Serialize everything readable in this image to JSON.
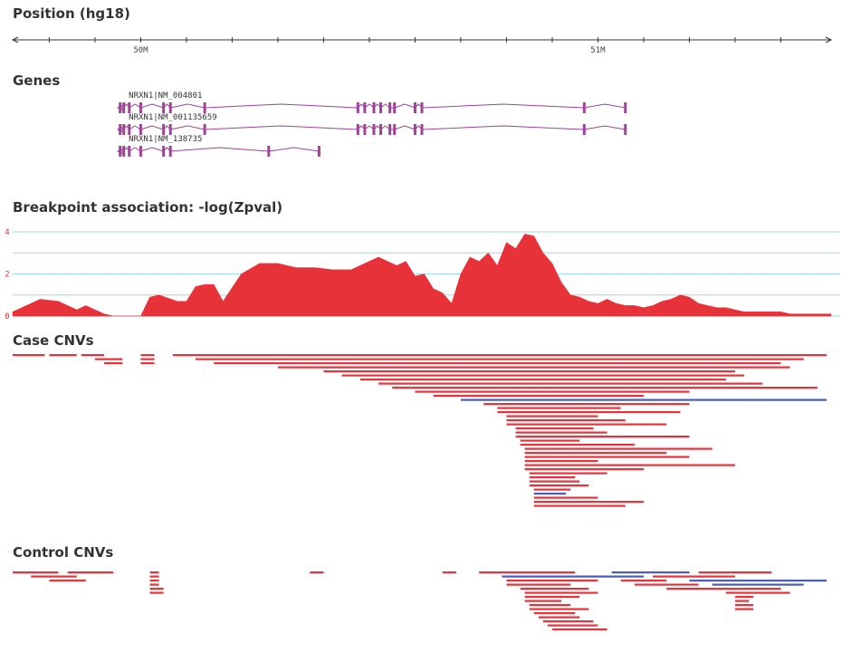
{
  "tracks": {
    "position_title": "Position (hg18)",
    "genes_title": "Genes",
    "breakpoint_title": "Breakpoint association: -log(Zpval)",
    "case_title": "Case CNVs",
    "control_title": "Control CNVs"
  },
  "colors": {
    "accent": "#e8323a",
    "cnv_blue": "#4a5bbd",
    "gene": "#a0429a",
    "grid": "#9fd8e6"
  },
  "chart_data": [
    {
      "type": "ruler",
      "title": "Position (hg18)",
      "tick_labels": [
        {
          "label": "50M",
          "x": 50.0
        },
        {
          "label": "51M",
          "x": 51.0
        }
      ],
      "xlim": [
        49.72,
        51.51
      ]
    },
    {
      "type": "gene-track",
      "title": "Genes",
      "genes": [
        {
          "name": "NRXN1|NM_004801",
          "start": 49.95,
          "end": 51.06,
          "exons": [
            49.955,
            49.963,
            49.975,
            50.0,
            50.05,
            50.065,
            50.14,
            50.475,
            50.49,
            50.51,
            50.525,
            50.545,
            50.555,
            50.6,
            50.615,
            50.97,
            51.06
          ]
        },
        {
          "name": "NRXN1|NM_001135659",
          "start": 49.95,
          "end": 51.06,
          "exons": [
            49.955,
            49.963,
            49.975,
            50.0,
            50.05,
            50.065,
            50.14,
            50.475,
            50.49,
            50.51,
            50.525,
            50.545,
            50.555,
            50.6,
            50.615,
            50.97,
            51.06
          ]
        },
        {
          "name": "NRXN1|NM_138735",
          "start": 49.95,
          "end": 50.39,
          "exons": [
            49.955,
            49.963,
            49.975,
            50.0,
            50.05,
            50.065,
            50.28,
            50.39
          ]
        }
      ]
    },
    {
      "type": "area",
      "title": "Breakpoint association: -log(Zpval)",
      "xlim": [
        49.72,
        51.51
      ],
      "ylim": [
        0,
        4
      ],
      "y_ticks": [
        0,
        2,
        4
      ],
      "grid": true,
      "x": [
        49.72,
        49.74,
        49.76,
        49.78,
        49.82,
        49.86,
        49.88,
        49.92,
        49.94,
        49.96,
        49.98,
        50.0,
        50.02,
        50.04,
        50.08,
        50.1,
        50.12,
        50.14,
        50.16,
        50.18,
        50.22,
        50.26,
        50.3,
        50.34,
        50.38,
        50.42,
        50.46,
        50.5,
        50.52,
        50.56,
        50.58,
        50.6,
        50.62,
        50.64,
        50.66,
        50.68,
        50.7,
        50.72,
        50.74,
        50.76,
        50.78,
        50.8,
        50.82,
        50.84,
        50.86,
        50.88,
        50.9,
        50.92,
        50.94,
        50.96,
        50.98,
        51.0,
        51.02,
        51.04,
        51.06,
        51.08,
        51.1,
        51.12,
        51.14,
        51.16,
        51.18,
        51.2,
        51.22,
        51.24,
        51.26,
        51.28,
        51.3,
        51.32,
        51.34,
        51.36,
        51.38,
        51.4,
        51.42,
        51.44,
        51.46,
        51.48,
        51.51
      ],
      "y": [
        0.2,
        0.4,
        0.6,
        0.8,
        0.7,
        0.3,
        0.5,
        0.1,
        0.0,
        0.0,
        0.0,
        0.0,
        0.9,
        1.0,
        0.7,
        0.7,
        1.4,
        1.5,
        1.5,
        0.7,
        2.0,
        2.5,
        2.5,
        2.3,
        2.3,
        2.2,
        2.2,
        2.6,
        2.8,
        2.4,
        2.6,
        1.9,
        2.0,
        1.3,
        1.1,
        0.6,
        2.0,
        2.8,
        2.6,
        3.0,
        2.4,
        3.5,
        3.2,
        3.9,
        3.8,
        3.0,
        2.5,
        1.6,
        1.0,
        0.9,
        0.7,
        0.6,
        0.8,
        0.6,
        0.5,
        0.5,
        0.4,
        0.5,
        0.7,
        0.8,
        1.0,
        0.9,
        0.6,
        0.5,
        0.4,
        0.4,
        0.3,
        0.2,
        0.2,
        0.2,
        0.2,
        0.2,
        0.1,
        0.1,
        0.1,
        0.1,
        0.1
      ]
    },
    {
      "type": "interval-stack",
      "title": "Case CNVs",
      "xlim": [
        49.72,
        51.51
      ],
      "intervals": [
        {
          "start": 49.72,
          "end": 49.79,
          "kind": "del"
        },
        {
          "start": 49.8,
          "end": 49.86,
          "kind": "del"
        },
        {
          "start": 49.87,
          "end": 49.92,
          "kind": "del"
        },
        {
          "start": 49.9,
          "end": 49.96,
          "kind": "del"
        },
        {
          "start": 49.92,
          "end": 49.96,
          "kind": "del"
        },
        {
          "start": 50.0,
          "end": 50.03,
          "kind": "del"
        },
        {
          "start": 50.0,
          "end": 50.03,
          "kind": "del"
        },
        {
          "start": 50.0,
          "end": 50.03,
          "kind": "del"
        },
        {
          "start": 50.07,
          "end": 51.5,
          "kind": "del"
        },
        {
          "start": 50.12,
          "end": 51.45,
          "kind": "del"
        },
        {
          "start": 50.16,
          "end": 51.4,
          "kind": "del"
        },
        {
          "start": 50.3,
          "end": 51.42,
          "kind": "del"
        },
        {
          "start": 50.4,
          "end": 51.3,
          "kind": "del"
        },
        {
          "start": 50.44,
          "end": 51.32,
          "kind": "del"
        },
        {
          "start": 50.48,
          "end": 51.28,
          "kind": "del"
        },
        {
          "start": 50.52,
          "end": 51.36,
          "kind": "del"
        },
        {
          "start": 50.55,
          "end": 51.48,
          "kind": "del"
        },
        {
          "start": 50.6,
          "end": 51.2,
          "kind": "del"
        },
        {
          "start": 50.64,
          "end": 51.1,
          "kind": "del"
        },
        {
          "start": 50.7,
          "end": 51.5,
          "kind": "dup"
        },
        {
          "start": 50.75,
          "end": 51.2,
          "kind": "del"
        },
        {
          "start": 50.78,
          "end": 51.05,
          "kind": "del"
        },
        {
          "start": 50.78,
          "end": 51.18,
          "kind": "del"
        },
        {
          "start": 50.8,
          "end": 51.0,
          "kind": "del"
        },
        {
          "start": 50.8,
          "end": 51.06,
          "kind": "del"
        },
        {
          "start": 50.8,
          "end": 51.15,
          "kind": "del"
        },
        {
          "start": 50.82,
          "end": 50.99,
          "kind": "del"
        },
        {
          "start": 50.82,
          "end": 51.02,
          "kind": "del"
        },
        {
          "start": 50.82,
          "end": 51.2,
          "kind": "del"
        },
        {
          "start": 50.83,
          "end": 50.96,
          "kind": "del"
        },
        {
          "start": 50.83,
          "end": 51.08,
          "kind": "del"
        },
        {
          "start": 50.84,
          "end": 51.25,
          "kind": "del"
        },
        {
          "start": 50.84,
          "end": 51.15,
          "kind": "del"
        },
        {
          "start": 50.84,
          "end": 51.2,
          "kind": "del"
        },
        {
          "start": 50.84,
          "end": 51.0,
          "kind": "del"
        },
        {
          "start": 50.84,
          "end": 51.3,
          "kind": "del"
        },
        {
          "start": 50.84,
          "end": 51.1,
          "kind": "del"
        },
        {
          "start": 50.85,
          "end": 51.02,
          "kind": "del"
        },
        {
          "start": 50.85,
          "end": 50.95,
          "kind": "del"
        },
        {
          "start": 50.85,
          "end": 50.96,
          "kind": "del"
        },
        {
          "start": 50.85,
          "end": 50.98,
          "kind": "del"
        },
        {
          "start": 50.86,
          "end": 50.94,
          "kind": "del"
        },
        {
          "start": 50.86,
          "end": 50.93,
          "kind": "dup"
        },
        {
          "start": 50.86,
          "end": 51.0,
          "kind": "del"
        },
        {
          "start": 50.86,
          "end": 51.1,
          "kind": "del"
        },
        {
          "start": 50.86,
          "end": 51.06,
          "kind": "del"
        }
      ]
    },
    {
      "type": "interval-stack",
      "title": "Control CNVs",
      "xlim": [
        49.72,
        51.51
      ],
      "intervals": [
        {
          "start": 49.72,
          "end": 49.82,
          "kind": "del"
        },
        {
          "start": 49.76,
          "end": 49.86,
          "kind": "del"
        },
        {
          "start": 49.8,
          "end": 49.88,
          "kind": "del"
        },
        {
          "start": 49.84,
          "end": 49.94,
          "kind": "del"
        },
        {
          "start": 50.02,
          "end": 50.04,
          "kind": "del"
        },
        {
          "start": 50.02,
          "end": 50.04,
          "kind": "del"
        },
        {
          "start": 50.02,
          "end": 50.04,
          "kind": "del"
        },
        {
          "start": 50.02,
          "end": 50.04,
          "kind": "del"
        },
        {
          "start": 50.02,
          "end": 50.05,
          "kind": "del"
        },
        {
          "start": 50.02,
          "end": 50.05,
          "kind": "del"
        },
        {
          "start": 50.37,
          "end": 50.4,
          "kind": "del"
        },
        {
          "start": 50.66,
          "end": 50.69,
          "kind": "del"
        },
        {
          "start": 50.74,
          "end": 50.95,
          "kind": "del"
        },
        {
          "start": 50.79,
          "end": 51.1,
          "kind": "dup"
        },
        {
          "start": 50.8,
          "end": 51.0,
          "kind": "del"
        },
        {
          "start": 50.8,
          "end": 50.94,
          "kind": "del"
        },
        {
          "start": 50.83,
          "end": 50.98,
          "kind": "del"
        },
        {
          "start": 50.84,
          "end": 51.0,
          "kind": "del"
        },
        {
          "start": 50.84,
          "end": 50.96,
          "kind": "del"
        },
        {
          "start": 50.84,
          "end": 50.92,
          "kind": "del"
        },
        {
          "start": 50.85,
          "end": 50.94,
          "kind": "del"
        },
        {
          "start": 50.85,
          "end": 50.98,
          "kind": "del"
        },
        {
          "start": 50.86,
          "end": 50.95,
          "kind": "del"
        },
        {
          "start": 50.87,
          "end": 50.96,
          "kind": "del"
        },
        {
          "start": 50.88,
          "end": 50.99,
          "kind": "del"
        },
        {
          "start": 50.89,
          "end": 51.0,
          "kind": "del"
        },
        {
          "start": 50.9,
          "end": 51.02,
          "kind": "del"
        },
        {
          "start": 51.03,
          "end": 51.2,
          "kind": "dup"
        },
        {
          "start": 51.05,
          "end": 51.15,
          "kind": "del"
        },
        {
          "start": 51.08,
          "end": 51.22,
          "kind": "del"
        },
        {
          "start": 51.12,
          "end": 51.3,
          "kind": "del"
        },
        {
          "start": 51.15,
          "end": 51.4,
          "kind": "del"
        },
        {
          "start": 51.2,
          "end": 51.5,
          "kind": "dup"
        },
        {
          "start": 51.22,
          "end": 51.38,
          "kind": "del"
        },
        {
          "start": 51.25,
          "end": 51.45,
          "kind": "dup"
        },
        {
          "start": 51.28,
          "end": 51.42,
          "kind": "del"
        },
        {
          "start": 51.3,
          "end": 51.34,
          "kind": "del"
        },
        {
          "start": 51.3,
          "end": 51.33,
          "kind": "del"
        },
        {
          "start": 51.3,
          "end": 51.34,
          "kind": "del"
        },
        {
          "start": 51.3,
          "end": 51.34,
          "kind": "del"
        }
      ]
    }
  ]
}
